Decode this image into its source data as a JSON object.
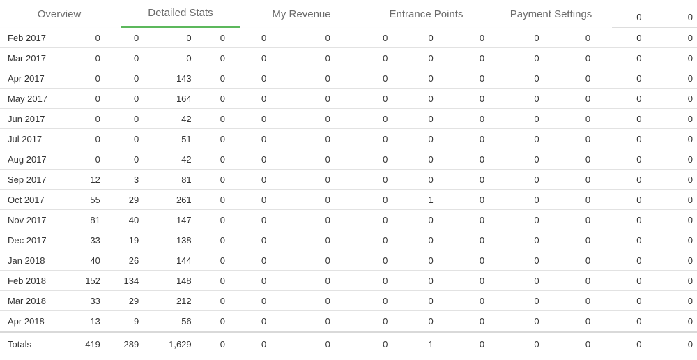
{
  "tabs": [
    {
      "label": "Overview",
      "active": false
    },
    {
      "label": "Detailed Stats",
      "active": true
    },
    {
      "label": "My Revenue",
      "active": false
    },
    {
      "label": "Entrance Points",
      "active": false
    },
    {
      "label": "Payment Settings",
      "active": false
    }
  ],
  "header_partial": [
    "0",
    "0"
  ],
  "rows": [
    {
      "period": "Feb 2017",
      "cells": [
        "0",
        "0",
        "0",
        "0",
        "0",
        "0",
        "0",
        "0",
        "0",
        "0",
        "0",
        "0",
        "0"
      ]
    },
    {
      "period": "Mar 2017",
      "cells": [
        "0",
        "0",
        "0",
        "0",
        "0",
        "0",
        "0",
        "0",
        "0",
        "0",
        "0",
        "0",
        "0"
      ]
    },
    {
      "period": "Apr 2017",
      "cells": [
        "0",
        "0",
        "143",
        "0",
        "0",
        "0",
        "0",
        "0",
        "0",
        "0",
        "0",
        "0",
        "0"
      ]
    },
    {
      "period": "May 2017",
      "cells": [
        "0",
        "0",
        "164",
        "0",
        "0",
        "0",
        "0",
        "0",
        "0",
        "0",
        "0",
        "0",
        "0"
      ]
    },
    {
      "period": "Jun 2017",
      "cells": [
        "0",
        "0",
        "42",
        "0",
        "0",
        "0",
        "0",
        "0",
        "0",
        "0",
        "0",
        "0",
        "0"
      ]
    },
    {
      "period": "Jul 2017",
      "cells": [
        "0",
        "0",
        "51",
        "0",
        "0",
        "0",
        "0",
        "0",
        "0",
        "0",
        "0",
        "0",
        "0"
      ]
    },
    {
      "period": "Aug 2017",
      "cells": [
        "0",
        "0",
        "42",
        "0",
        "0",
        "0",
        "0",
        "0",
        "0",
        "0",
        "0",
        "0",
        "0"
      ]
    },
    {
      "period": "Sep 2017",
      "cells": [
        "12",
        "3",
        "81",
        "0",
        "0",
        "0",
        "0",
        "0",
        "0",
        "0",
        "0",
        "0",
        "0"
      ]
    },
    {
      "period": "Oct 2017",
      "cells": [
        "55",
        "29",
        "261",
        "0",
        "0",
        "0",
        "0",
        "1",
        "0",
        "0",
        "0",
        "0",
        "0"
      ]
    },
    {
      "period": "Nov 2017",
      "cells": [
        "81",
        "40",
        "147",
        "0",
        "0",
        "0",
        "0",
        "0",
        "0",
        "0",
        "0",
        "0",
        "0"
      ]
    },
    {
      "period": "Dec 2017",
      "cells": [
        "33",
        "19",
        "138",
        "0",
        "0",
        "0",
        "0",
        "0",
        "0",
        "0",
        "0",
        "0",
        "0"
      ]
    },
    {
      "period": "Jan 2018",
      "cells": [
        "40",
        "26",
        "144",
        "0",
        "0",
        "0",
        "0",
        "0",
        "0",
        "0",
        "0",
        "0",
        "0"
      ]
    },
    {
      "period": "Feb 2018",
      "cells": [
        "152",
        "134",
        "148",
        "0",
        "0",
        "0",
        "0",
        "0",
        "0",
        "0",
        "0",
        "0",
        "0"
      ]
    },
    {
      "period": "Mar 2018",
      "cells": [
        "33",
        "29",
        "212",
        "0",
        "0",
        "0",
        "0",
        "0",
        "0",
        "0",
        "0",
        "0",
        "0"
      ]
    },
    {
      "period": "Apr 2018",
      "cells": [
        "13",
        "9",
        "56",
        "0",
        "0",
        "0",
        "0",
        "0",
        "0",
        "0",
        "0",
        "0",
        "0"
      ]
    }
  ],
  "totals": {
    "label": "Totals",
    "cells": [
      "419",
      "289",
      "1,629",
      "0",
      "0",
      "0",
      "0",
      "1",
      "0",
      "0",
      "0",
      "0",
      "0"
    ]
  },
  "colors": {
    "accent": "#5cb85c",
    "text": "#333333",
    "tab_text": "#6b6b6b",
    "row_border": "#e2e2e2"
  }
}
